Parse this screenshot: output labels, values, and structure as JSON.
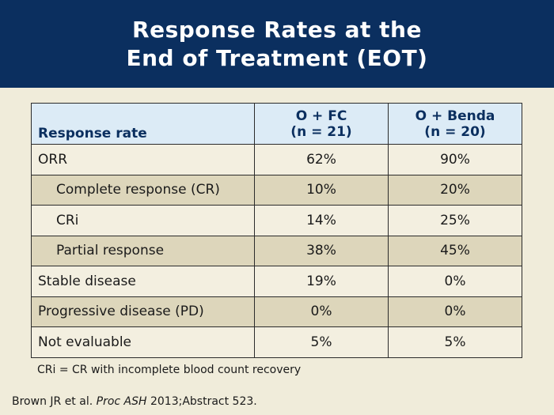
{
  "slide": {
    "title_line1": "Response Rates at the",
    "title_line2": "End of Treatment (EOT)"
  },
  "table": {
    "columns": [
      {
        "line1": "",
        "line2": "Response rate"
      },
      {
        "line1": "O + FC",
        "line2": "(n = 21)"
      },
      {
        "line1": "O + Benda",
        "line2": "(n = 20)"
      }
    ],
    "rows": [
      {
        "label": "ORR",
        "indent": false,
        "fc": "62%",
        "benda": "90%"
      },
      {
        "label": "Complete response (CR)",
        "indent": true,
        "fc": "10%",
        "benda": "20%"
      },
      {
        "label": "CRi",
        "indent": true,
        "fc": "14%",
        "benda": "25%"
      },
      {
        "label": "Partial response",
        "indent": true,
        "fc": "38%",
        "benda": "45%"
      },
      {
        "label": "Stable disease",
        "indent": false,
        "fc": "19%",
        "benda": "0%"
      },
      {
        "label": "Progressive disease (PD)",
        "indent": false,
        "fc": "0%",
        "benda": "0%"
      },
      {
        "label": "Not evaluable",
        "indent": false,
        "fc": "5%",
        "benda": "5%"
      }
    ]
  },
  "footnote": "CRi = CR with incomplete blood count recovery",
  "citation": {
    "authors": "Brown JR et al.",
    "journal": "Proc ASH",
    "rest": "2013;Abstract 523."
  },
  "colors": {
    "header_bg": "#0b2f5f",
    "slide_bg": "#f0ecda",
    "table_head_bg": "#dcebf6",
    "row_light": "#f3efe0",
    "row_dark": "#ddd6bb"
  }
}
